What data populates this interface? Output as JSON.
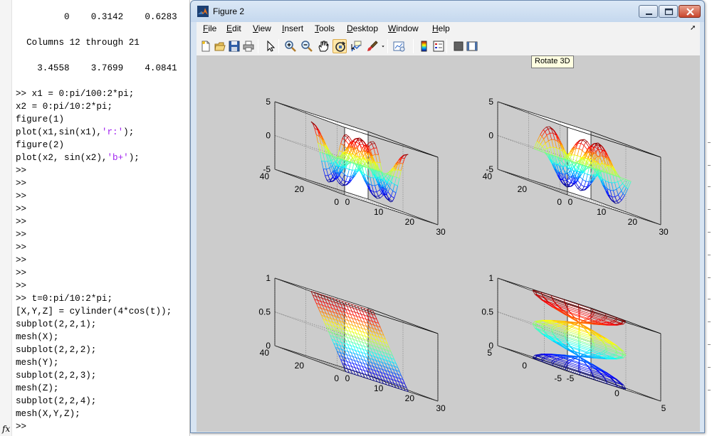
{
  "command_window": {
    "lines": [
      {
        "text": "         0    0.3142    0.6283"
      },
      {
        "text": ""
      },
      {
        "text": "  Columns 12 through 21"
      },
      {
        "text": ""
      },
      {
        "text": "    3.4558    3.7699    4.0841"
      },
      {
        "text": ""
      },
      {
        "text": ">> x1 = 0:pi/100:2*pi;"
      },
      {
        "text": "x2 = 0:pi/10:2*pi;"
      },
      {
        "text": "figure(1)"
      },
      {
        "text": "plot(x1,sin(x1),",
        "str": "'r:'",
        "post": ");"
      },
      {
        "text": "figure(2)"
      },
      {
        "text": "plot(x2, sin(x2),",
        "str": "'b+'",
        "post": ");"
      },
      {
        "text": ">>"
      },
      {
        "text": ">>"
      },
      {
        "text": ">>"
      },
      {
        "text": ">>"
      },
      {
        "text": ">>"
      },
      {
        "text": ">>"
      },
      {
        "text": ">>"
      },
      {
        "text": ">>"
      },
      {
        "text": ">>"
      },
      {
        "text": ">>"
      },
      {
        "text": ">> t=0:pi/10:2*pi;"
      },
      {
        "text": "[X,Y,Z] = cylinder(4*cos(t));"
      },
      {
        "text": "subplot(2,2,1);"
      },
      {
        "text": "mesh(X);"
      },
      {
        "text": "subplot(2,2,2);"
      },
      {
        "text": "mesh(Y);"
      },
      {
        "text": "subplot(2,2,3);"
      },
      {
        "text": "mesh(Z);"
      },
      {
        "text": "subplot(2,2,4);"
      },
      {
        "text": "mesh(X,Y,Z);"
      },
      {
        "text": ">>"
      }
    ],
    "fx_label": "fx",
    "string_color": "#a020f0"
  },
  "figure_window": {
    "title": "Figure 2",
    "menu": [
      {
        "label": "File",
        "accel": "F",
        "rest": "ile"
      },
      {
        "label": "Edit",
        "accel": "E",
        "rest": "dit"
      },
      {
        "label": "View",
        "accel": "V",
        "rest": "iew"
      },
      {
        "label": "Insert",
        "accel": "I",
        "rest": "nsert"
      },
      {
        "label": "Tools",
        "accel": "T",
        "rest": "ools"
      },
      {
        "label": "Desktop",
        "accel": "D",
        "rest": "esktop"
      },
      {
        "label": "Window",
        "accel": "W",
        "rest": "indow"
      },
      {
        "label": "Help",
        "accel": "H",
        "rest": "elp"
      }
    ],
    "menu_overflow_icon": "dock-arrow-icon",
    "toolbar": [
      {
        "name": "new-figure",
        "icon": "new-figure-icon"
      },
      {
        "name": "open-file",
        "icon": "open-folder-icon"
      },
      {
        "name": "save-figure",
        "icon": "save-disk-icon"
      },
      {
        "name": "print-figure",
        "icon": "printer-icon"
      },
      {
        "name": "edit-plot",
        "icon": "pointer-arrow-icon"
      },
      {
        "name": "zoom-in",
        "icon": "zoom-in-icon"
      },
      {
        "name": "zoom-out",
        "icon": "zoom-out-icon"
      },
      {
        "name": "pan",
        "icon": "hand-icon"
      },
      {
        "name": "rotate-3d",
        "icon": "rotate-3d-icon",
        "active": true
      },
      {
        "name": "data-cursor",
        "icon": "data-cursor-icon"
      },
      {
        "name": "brush",
        "icon": "brush-icon"
      },
      {
        "name": "brush-dropdown",
        "icon": "dropdown-arrow-icon"
      },
      {
        "name": "link-plot",
        "icon": "link-plot-icon"
      },
      {
        "name": "insert-colorbar",
        "icon": "colorbar-icon"
      },
      {
        "name": "insert-legend",
        "icon": "legend-icon"
      },
      {
        "name": "hide-plot-tools",
        "icon": "hide-plot-tools-icon"
      },
      {
        "name": "show-plot-tools",
        "icon": "show-plot-tools-icon"
      }
    ],
    "tooltip": "Rotate 3D",
    "canvas_color": "#cccccc"
  },
  "chart_data": [
    {
      "type": "mesh-surface",
      "command": "mesh(X)",
      "surface": "X = 4*cos(t_i)*cos(theta_j), t_i = 0:pi/10:2*pi (21 rows), theta over 21 steps",
      "zlim": [
        -5,
        5
      ],
      "zticks": [
        "-5",
        "0",
        "5"
      ],
      "xlim": [
        0,
        30
      ],
      "xticks": [
        "0",
        "10",
        "20",
        "30"
      ],
      "ylim": [
        0,
        40
      ],
      "yticks": [
        "0",
        "20",
        "40"
      ],
      "grid": true,
      "colormap": "jet"
    },
    {
      "type": "mesh-surface",
      "command": "mesh(Y)",
      "surface": "Y = 4*cos(t_i)*sin(theta_j)",
      "zlim": [
        -5,
        5
      ],
      "zticks": [
        "-5",
        "0",
        "5"
      ],
      "xlim": [
        0,
        30
      ],
      "xticks": [
        "0",
        "10",
        "20",
        "30"
      ],
      "ylim": [
        0,
        40
      ],
      "yticks": [
        "0",
        "20",
        "40"
      ],
      "grid": true,
      "colormap": "jet"
    },
    {
      "type": "mesh-surface",
      "command": "mesh(Z)",
      "surface": "Z = (i-1)/20, i = 1..21 (constant along columns)",
      "zlim": [
        0,
        1
      ],
      "zticks": [
        "0",
        "0.5",
        "1"
      ],
      "xlim": [
        0,
        30
      ],
      "xticks": [
        "0",
        "10",
        "20",
        "30"
      ],
      "ylim": [
        0,
        40
      ],
      "yticks": [
        "0",
        "20",
        "40"
      ],
      "grid": true,
      "colormap": "jet"
    },
    {
      "type": "mesh-surface",
      "command": "mesh(X,Y,Z)",
      "surface": "cylinder(4*cos(t)) with radius |4*cos(t)| at height z = (i-1)/20",
      "zlim": [
        0,
        1
      ],
      "zticks": [
        "0",
        "0.5",
        "1"
      ],
      "xlim": [
        -5,
        5
      ],
      "xticks": [
        "-5",
        "0",
        "5"
      ],
      "ylim": [
        -5,
        5
      ],
      "yticks": [
        "-5",
        "0",
        "5"
      ],
      "grid": true,
      "colormap": "jet"
    }
  ]
}
